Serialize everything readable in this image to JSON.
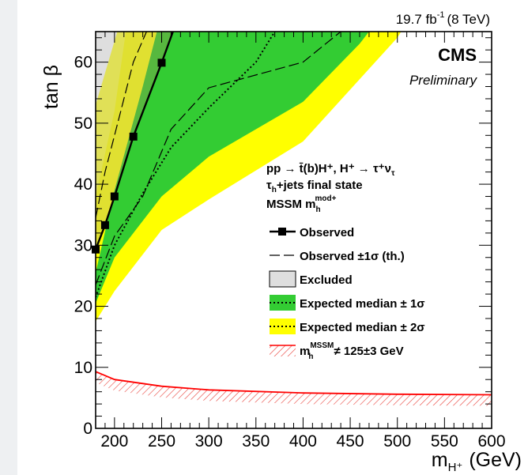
{
  "chart_data": {
    "type": "area",
    "experiment": "CMS",
    "status": "Preliminary",
    "luminosity": "19.7 fb",
    "luminosity_exp": "-1",
    "energy": "(8 TeV)",
    "xlabel": "m",
    "xlabel_sub": "H⁺",
    "xlabel_unit": "(GeV)",
    "ylabel": "tan β",
    "xlim": [
      180,
      600
    ],
    "ylim": [
      0,
      65
    ],
    "xticks": [
      200,
      250,
      300,
      350,
      400,
      450,
      500,
      550,
      600
    ],
    "yticks": [
      0,
      10,
      20,
      30,
      40,
      50,
      60
    ],
    "legend_header": {
      "process": "pp → t̄(b)H⁺, H⁺ → τ⁺ν",
      "process_sub": "τ",
      "state": "+jets final state",
      "state_prefix": "τ",
      "state_sub": "h",
      "scenario": "MSSM  m",
      "scenario_sup": "mod+",
      "scenario_sub": "h"
    },
    "legend": [
      {
        "label": "Observed",
        "style": "observed"
      },
      {
        "label": "Observed  ±1σ (th.)",
        "style": "observed-theory"
      },
      {
        "label": "Excluded",
        "style": "excluded"
      },
      {
        "label": "Expected median  ± 1σ",
        "style": "expected-1sigma"
      },
      {
        "label": "Expected median  ± 2σ",
        "style": "expected-2sigma"
      },
      {
        "label": "≠ 125±3 GeV",
        "label_prefix": "m",
        "label_sup": "MSSM",
        "label_sub": "h",
        "style": "mh-constraint"
      }
    ],
    "colors": {
      "excluded": "#dedede",
      "band_1sigma": "#33cc33",
      "band_2sigma": "#ffff00",
      "observed": "#000000",
      "mh_line": "#ff0000",
      "overlap_observed_1sigma": "#57b83f",
      "overlap_observed_2sigma": "#dada3a"
    },
    "series": [
      {
        "name": "Observed",
        "x": [
          180,
          190,
          200,
          220,
          250,
          262
        ],
        "y": [
          29.3,
          33.3,
          38.0,
          47.8,
          59.9,
          65
        ]
      },
      {
        "name": "Observed +1σ (th.)",
        "x": [
          180,
          190,
          200,
          220,
          234
        ],
        "y": [
          34.5,
          42.0,
          48.0,
          60.0,
          65
        ]
      },
      {
        "name": "Observed -1σ (th.)",
        "x": [
          180,
          190,
          200,
          230,
          260,
          300,
          400,
          440
        ],
        "y": [
          23.5,
          27.5,
          31.5,
          38.0,
          49.0,
          55.8,
          60.0,
          65
        ]
      },
      {
        "name": "Expected median",
        "x": [
          180,
          200,
          230,
          260,
          300,
          350,
          370
        ],
        "y": [
          21.5,
          30.0,
          38.5,
          46.0,
          52.5,
          60.0,
          65
        ]
      },
      {
        "name": "Expected +1σ",
        "x": [
          180,
          200,
          230,
          245
        ],
        "y": [
          25.5,
          39.0,
          56.0,
          65
        ]
      },
      {
        "name": "Expected -1σ",
        "x": [
          180,
          200,
          250,
          300,
          400,
          460,
          470
        ],
        "y": [
          20.5,
          28.0,
          38.0,
          44.5,
          53.5,
          63.0,
          65
        ]
      },
      {
        "name": "Expected +2σ",
        "x": [
          180,
          200,
          212
        ],
        "y": [
          38.0,
          52.0,
          65
        ]
      },
      {
        "name": "Expected -2σ",
        "x": [
          180,
          200,
          250,
          300,
          400,
          500,
          504
        ],
        "y": [
          17.5,
          22.5,
          32.5,
          37.5,
          47.0,
          64.0,
          65
        ]
      },
      {
        "name": "Excluded boundary",
        "x": [
          180,
          203
        ],
        "y": [
          53.0,
          65
        ]
      },
      {
        "name": "m_h^MSSM ≠ 125±3 GeV",
        "x": [
          180,
          200,
          250,
          300,
          400,
          500,
          600
        ],
        "y": [
          9.3,
          8.0,
          6.9,
          6.3,
          5.8,
          5.6,
          5.5
        ]
      }
    ]
  }
}
